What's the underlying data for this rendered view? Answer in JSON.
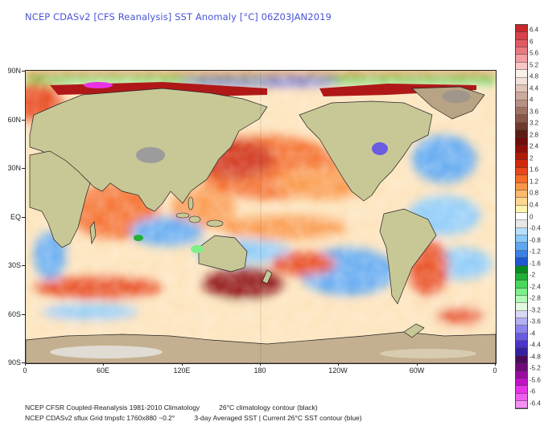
{
  "title": "NCEP CDASv2 [CFS Reanalysis] SST Anomaly [°C] 06Z03JAN2019",
  "map": {
    "type": "global SST anomaly map",
    "projection": "cylindrical equidistant, centered 180",
    "y_axis": {
      "labels": [
        "90N",
        "60N",
        "30N",
        "EQ",
        "30S",
        "60S",
        "90S"
      ]
    },
    "x_axis": {
      "labels": [
        "0",
        "60E",
        "120E",
        "180",
        "120W",
        "60W",
        "0"
      ]
    },
    "features": {
      "land_shading": "topographic tan/green",
      "country_borders": "black",
      "climatology_contour": "26°C (black)",
      "current_contour": "26°C (blue)"
    }
  },
  "colorbar": {
    "unit": "°C",
    "labels": [
      "6.4",
      "6",
      "5.6",
      "5.2",
      "4.8",
      "4.4",
      "4",
      "3.6",
      "3.2",
      "2.8",
      "2.4",
      "2",
      "1.6",
      "1.2",
      "0.8",
      "0.4",
      "0",
      "-0.4",
      "-0.8",
      "-1.2",
      "-1.6",
      "-2",
      "-2.4",
      "-2.8",
      "-3.2",
      "-3.6",
      "-4",
      "-4.4",
      "-4.8",
      "-5.2",
      "-5.6",
      "-6",
      "-6.4"
    ],
    "colors": [
      "#c8282c",
      "#d8404a",
      "#e05a64",
      "#e87a80",
      "#f2a0a4",
      "#f8c8c8",
      "#faf0ec",
      "#f2e2da",
      "#e0c4b8",
      "#ccaa9c",
      "#b89084",
      "#a07464",
      "#885848",
      "#6e3a2c",
      "#5a1c14",
      "#6c0e0a",
      "#8e0e08",
      "#b01808",
      "#d02a0c",
      "#e8481a",
      "#f56e2a",
      "#fa9848",
      "#fcba6c",
      "#fed890",
      "#fff4b0",
      "#ffffff",
      "#e8e8e8",
      "#b8e0fc",
      "#8ccaf8",
      "#5ea8f0",
      "#3a80e6",
      "#1e58d2",
      "#0a8a22",
      "#22b038",
      "#48d85a",
      "#7ef08a",
      "#b4f8b8",
      "#e4fae0",
      "#d8d8f4",
      "#b4b0f4",
      "#8c84ee",
      "#6a5ce0",
      "#4a34cc",
      "#34209e",
      "#4a0a5a",
      "#6e0a78",
      "#960ca0",
      "#c012c4",
      "#e832e6",
      "#f05ef0",
      "#f490f2"
    ]
  },
  "footer": {
    "line1_left": "NCEP CFSR Coupled-Reanalysis 1981-2010 Climatology",
    "line1_right": "26°C climatology contour (black)",
    "line2_left": "NCEP CDASv2 sflux Grid tmpsfc 1760x880 ~0.2°",
    "line2_right": "3-day Averaged SST | Current 26°C SST contour (blue)"
  }
}
